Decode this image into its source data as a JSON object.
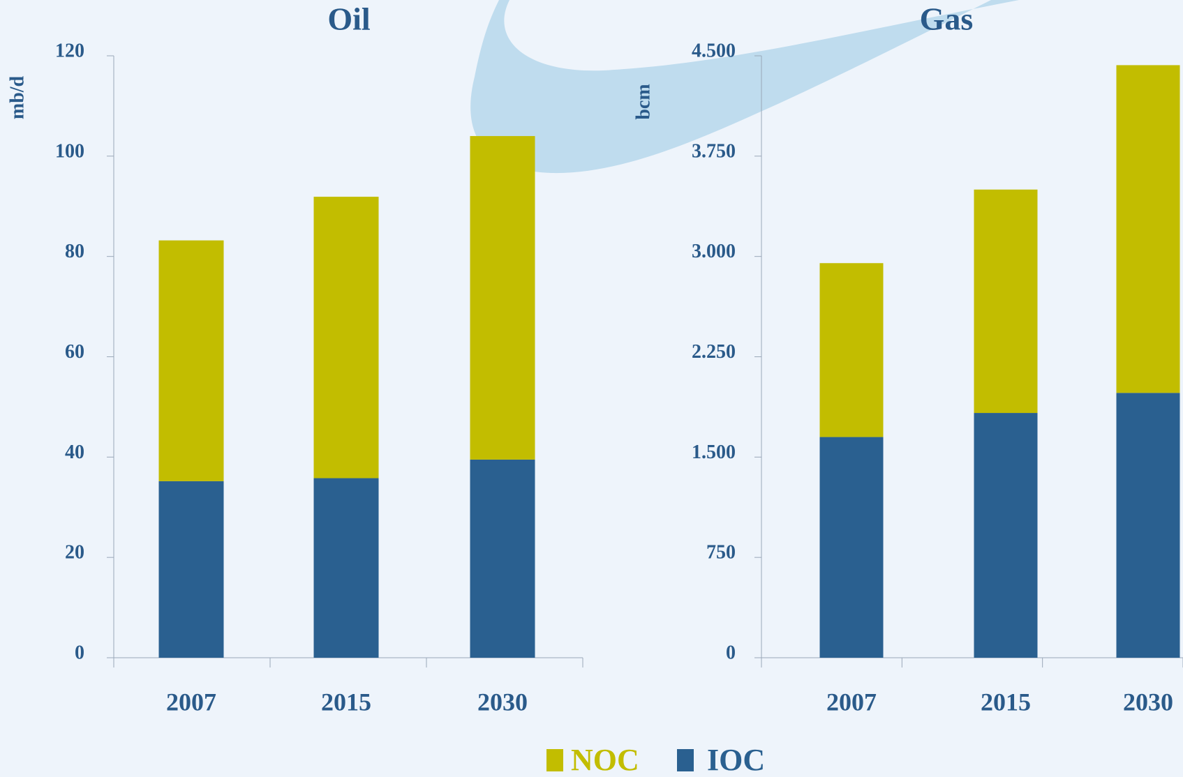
{
  "chart_data": [
    {
      "type": "bar",
      "stacked": true,
      "title": "Oil",
      "y_label": "mb/d",
      "categories": [
        "2007",
        "2015",
        "2030"
      ],
      "series": [
        {
          "name": "IOC",
          "color": "#2a6090",
          "values": [
            35.2,
            35.8,
            39.5
          ]
        },
        {
          "name": "NOC",
          "color": "#c2bd00",
          "values": [
            48,
            56.1,
            64.5
          ]
        }
      ],
      "ylim": [
        0,
        120
      ],
      "yticks": [
        0,
        20,
        40,
        60,
        80,
        100,
        120
      ]
    },
    {
      "type": "bar",
      "stacked": true,
      "title": "Gas",
      "y_label": "bcm",
      "categories": [
        "2007",
        "2015",
        "2030"
      ],
      "series": [
        {
          "name": "IOC",
          "color": "#2a6090",
          "values": [
            1650,
            1830,
            1980
          ]
        },
        {
          "name": "NOC",
          "color": "#c2bd00",
          "values": [
            1300,
            1670,
            2450
          ]
        }
      ],
      "ylim": [
        0,
        4500
      ],
      "yticks": [
        0,
        750,
        {
          "value": 1500,
          "label": "1.500"
        },
        {
          "value": 2250,
          "label": "2.250"
        },
        {
          "value": 3000,
          "label": "3.000"
        },
        {
          "value": 3750,
          "label": "3.750"
        },
        {
          "value": 4500,
          "label": "4.500"
        }
      ]
    }
  ]
}
